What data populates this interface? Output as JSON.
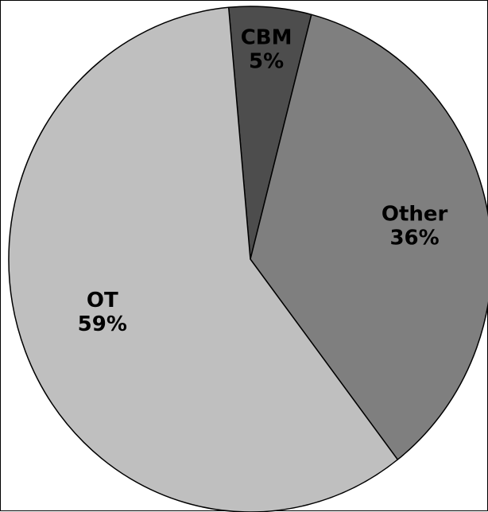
{
  "chart_data": {
    "type": "pie",
    "title": "",
    "slices": [
      {
        "category": "CBM",
        "pct_label": "5%",
        "value": 5.5,
        "color": "#4d4d4d"
      },
      {
        "category": "Other",
        "pct_label": "36%",
        "value": 35.5,
        "color": "#7f7f7f"
      },
      {
        "category": "OT",
        "pct_label": "59%",
        "value": 59.0,
        "color": "#bfbfbf"
      }
    ],
    "start_slice": "CBM",
    "direction": "clockwise",
    "legend": "none",
    "labels": "inside"
  }
}
